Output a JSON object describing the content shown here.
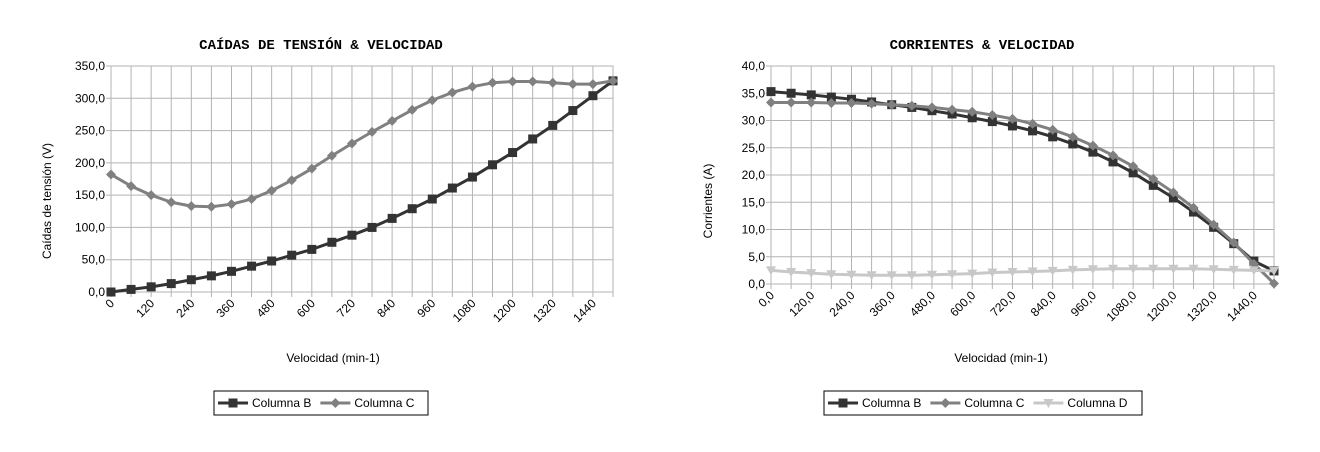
{
  "chart_data": [
    {
      "type": "line",
      "title": "CAÍDAS DE TENSIÓN & VELOCIDAD",
      "xlabel": "Velocidad (min-1)",
      "ylabel": "Caídas de tensión (V)",
      "ylim": [
        0,
        350
      ],
      "yticks": [
        "0,0",
        "50,0",
        "100,0",
        "150,0",
        "200,0",
        "250,0",
        "300,0",
        "350,0"
      ],
      "x": [
        0,
        60,
        120,
        180,
        240,
        300,
        360,
        420,
        480,
        540,
        600,
        660,
        720,
        780,
        840,
        900,
        960,
        1020,
        1080,
        1140,
        1200,
        1260,
        1320,
        1380,
        1440,
        1500
      ],
      "xtick_labels": [
        "0",
        "120",
        "240",
        "360",
        "480",
        "600",
        "720",
        "840",
        "960",
        "1080",
        "1200",
        "1320",
        "1440"
      ],
      "grid": true,
      "legend_position": "bottom",
      "series": [
        {
          "name": "Columna B",
          "color": "#333333",
          "marker": "square",
          "values": [
            0,
            4,
            8,
            13,
            19,
            25,
            32,
            40,
            48,
            57,
            66,
            77,
            88,
            100,
            114,
            129,
            144,
            161,
            178,
            197,
            216,
            237,
            258,
            281,
            304,
            327
          ]
        },
        {
          "name": "Columna C",
          "color": "#808080",
          "marker": "diamond",
          "values": [
            182,
            164,
            150,
            139,
            133,
            132,
            136,
            144,
            157,
            173,
            191,
            211,
            230,
            248,
            265,
            282,
            297,
            309,
            318,
            324,
            326,
            326,
            324,
            322,
            322,
            327
          ]
        }
      ]
    },
    {
      "type": "line",
      "title": "CORRIENTES & VELOCIDAD",
      "xlabel": "Velocidad (min-1)",
      "ylabel": "Corrientes (A)",
      "ylim": [
        0,
        40
      ],
      "yticks": [
        "0,0",
        "5,0",
        "10,0",
        "15,0",
        "20,0",
        "25,0",
        "30,0",
        "35,0",
        "40,0"
      ],
      "x": [
        0,
        60,
        120,
        180,
        240,
        300,
        360,
        420,
        480,
        540,
        600,
        660,
        720,
        780,
        840,
        900,
        960,
        1020,
        1080,
        1140,
        1200,
        1260,
        1320,
        1380,
        1440,
        1500
      ],
      "xtick_labels": [
        "0,0",
        "120,0",
        "240,0",
        "360,0",
        "480,0",
        "600,0",
        "720,0",
        "840,0",
        "960,0",
        "1080,0",
        "1200,0",
        "1320,0",
        "1440,0"
      ],
      "grid": true,
      "legend_position": "bottom",
      "series": [
        {
          "name": "Columna B",
          "color": "#333333",
          "marker": "square",
          "values": [
            35.3,
            35.0,
            34.7,
            34.3,
            33.9,
            33.4,
            32.9,
            32.4,
            31.8,
            31.2,
            30.5,
            29.8,
            29.0,
            28.1,
            27.0,
            25.7,
            24.2,
            22.4,
            20.4,
            18.1,
            15.8,
            13.2,
            10.4,
            7.4,
            4.2,
            2.4
          ]
        },
        {
          "name": "Columna C",
          "color": "#808080",
          "marker": "diamond",
          "values": [
            33.3,
            33.3,
            33.3,
            33.2,
            33.2,
            33.1,
            32.9,
            32.7,
            32.4,
            32.0,
            31.6,
            31.0,
            30.3,
            29.4,
            28.3,
            27.0,
            25.4,
            23.6,
            21.6,
            19.3,
            16.8,
            14.0,
            10.9,
            7.6,
            3.7,
            0.1
          ]
        },
        {
          "name": "Columna D",
          "color": "#c8c8c8",
          "marker": "triangle-down",
          "values": [
            2.5,
            2.2,
            2.0,
            1.8,
            1.7,
            1.6,
            1.6,
            1.6,
            1.7,
            1.8,
            1.9,
            2.1,
            2.2,
            2.3,
            2.4,
            2.6,
            2.7,
            2.8,
            2.8,
            2.8,
            2.8,
            2.8,
            2.7,
            2.6,
            2.5,
            2.4
          ]
        }
      ]
    }
  ]
}
